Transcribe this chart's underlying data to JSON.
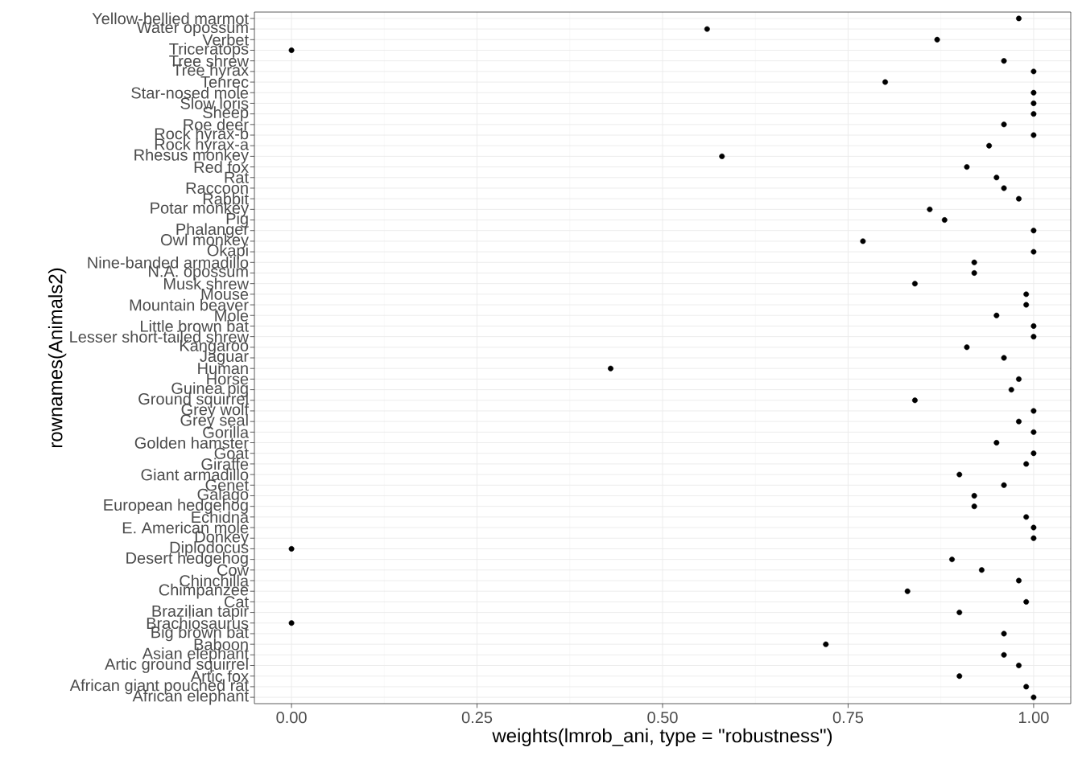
{
  "chart_data": {
    "type": "scatter",
    "orientation": "horizontal",
    "xlabel": "weights(lmrob_ani, type = \"robustness\")",
    "ylabel": "rownames(Animals2)",
    "categories": [
      "Yellow-bellied marmot",
      "Water opossum",
      "Verbet",
      "Triceratops",
      "Tree shrew",
      "Tree hyrax",
      "Tenrec",
      "Star-nosed mole",
      "Slow loris",
      "Sheep",
      "Roe deer",
      "Rock hyrax-b",
      "Rock hyrax-a",
      "Rhesus monkey",
      "Red fox",
      "Rat",
      "Raccoon",
      "Rabbit",
      "Potar monkey",
      "Pig",
      "Phalanger",
      "Owl monkey",
      "Okapi",
      "Nine-banded armadillo",
      "N.A. opossum",
      "Musk shrew",
      "Mouse",
      "Mountain beaver",
      "Mole",
      "Little brown bat",
      "Lesser short-tailed shrew",
      "Kangaroo",
      "Jaguar",
      "Human",
      "Horse",
      "Guinea pig",
      "Ground squirrel",
      "Grey wolf",
      "Grey seal",
      "Gorilla",
      "Golden hamster",
      "Goat",
      "Giraffe",
      "Giant armadillo",
      "Genet",
      "Galago",
      "European hedgehog",
      "Echidna",
      "E. American mole",
      "Donkey",
      "Diplodocus",
      "Desert hedgehog",
      "Cow",
      "Chinchilla",
      "Chimpanzee",
      "Cat",
      "Brazilian tapir",
      "Brachiosaurus",
      "Big brown bat",
      "Baboon",
      "Asian elephant",
      "Artic ground squirrel",
      "Artic fox",
      "African giant pouched rat",
      "African elephant"
    ],
    "values": [
      0.98,
      0.56,
      0.87,
      0,
      0.96,
      1.0,
      0.8,
      1.0,
      1.0,
      1.0,
      0.96,
      1.0,
      0.94,
      0.58,
      0.91,
      0.95,
      0.96,
      0.98,
      0.86,
      0.88,
      1.0,
      0.77,
      1.0,
      0.92,
      0.92,
      0.84,
      0.99,
      0.99,
      0.95,
      1.0,
      1.0,
      0.91,
      0.96,
      0.43,
      0.98,
      0.97,
      0.84,
      1.0,
      0.98,
      1.0,
      0.95,
      1.0,
      0.99,
      0.9,
      0.96,
      0.92,
      0.92,
      0.99,
      1.0,
      1.0,
      0,
      0.89,
      0.93,
      0.98,
      0.83,
      0.99,
      0.9,
      0,
      0.96,
      0.72,
      0.96,
      0.98,
      0.9,
      0.99,
      1.0
    ],
    "color": "#000000",
    "grid": true,
    "xlim": [
      -0.05,
      1.05
    ],
    "xticks": [
      {
        "value": 0,
        "label": "0.00"
      },
      {
        "value": 0.25,
        "label": "0.25"
      },
      {
        "value": 0.5,
        "label": "0.50"
      },
      {
        "value": 0.75,
        "label": "0.75"
      },
      {
        "value": 1,
        "label": "1.00"
      }
    ]
  }
}
